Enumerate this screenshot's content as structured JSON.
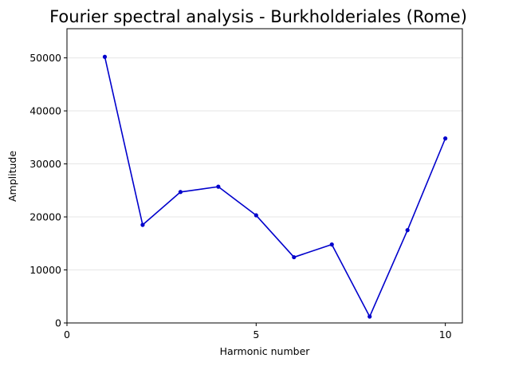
{
  "chart_data": {
    "type": "line",
    "title": "Fourier spectral analysis - Burkholderiales (Rome)",
    "xlabel": "Harmonic number",
    "ylabel": "Amplitude",
    "xlim": [
      0,
      10.45
    ],
    "ylim": [
      0,
      55500
    ],
    "xticks": [
      0,
      5,
      10
    ],
    "yticks": [
      0,
      10000,
      20000,
      30000,
      40000,
      50000
    ],
    "grid": "horizontal",
    "series": [
      {
        "color": "#0000cc",
        "x": [
          1,
          2,
          3,
          4,
          5,
          6,
          7,
          8,
          9,
          10
        ],
        "y": [
          50200,
          18500,
          24700,
          25700,
          20300,
          12400,
          14800,
          1200,
          17500,
          34800
        ]
      }
    ]
  }
}
